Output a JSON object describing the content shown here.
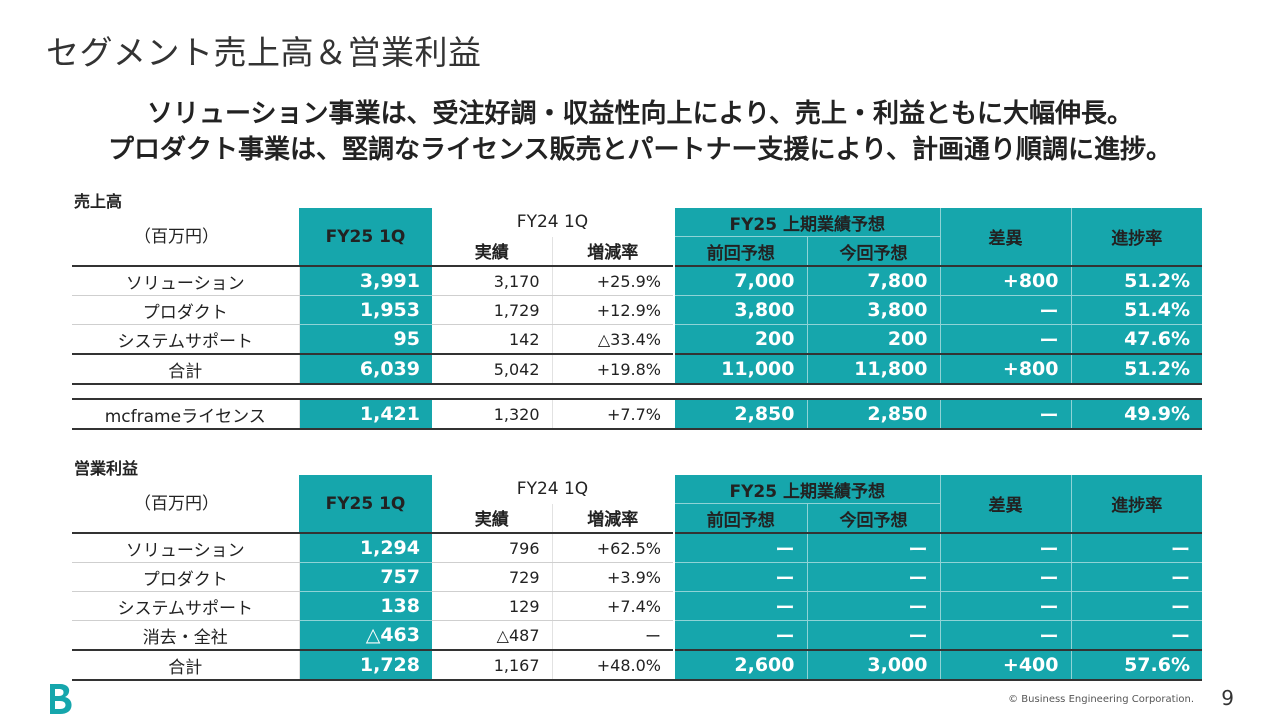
{
  "title": "セグメント売上高＆営業利益",
  "headline": {
    "line1": "ソリューション事業は、受注好調・収益性向上により、売上・利益ともに大幅伸長。",
    "line2": "プロダクト事業は、堅調なライセンス販売とパートナー支援により、計画通り順調に進捗。"
  },
  "headers": {
    "unit": "（百万円）",
    "fy25_1q": "FY25 1Q",
    "fy24_1q": "FY24 1Q",
    "actual": "実績",
    "change": "増減率",
    "forecast": "FY25 上期業績予想",
    "prev_forecast": "前回予想",
    "curr_forecast": "今回予想",
    "diff": "差異",
    "progress": "進捗率"
  },
  "sales": {
    "label": "売上高",
    "rows": [
      {
        "name": "ソリューション",
        "fy25": "3,991",
        "fy24": "3,170",
        "chg": "+25.9%",
        "prev": "7,000",
        "curr": "7,800",
        "diff": "+800",
        "prog": "51.2%"
      },
      {
        "name": "プロダクト",
        "fy25": "1,953",
        "fy24": "1,729",
        "chg": "+12.9%",
        "prev": "3,800",
        "curr": "3,800",
        "diff": "ー",
        "prog": "51.4%"
      },
      {
        "name": "システムサポート",
        "fy25": "95",
        "fy24": "142",
        "chg": "△33.4%",
        "prev": "200",
        "curr": "200",
        "diff": "ー",
        "prog": "47.6%"
      },
      {
        "name": "合計",
        "fy25": "6,039",
        "fy24": "5,042",
        "chg": "+19.8%",
        "prev": "11,000",
        "curr": "11,800",
        "diff": "+800",
        "prog": "51.2%"
      }
    ],
    "mcframe": {
      "name": "mcframeライセンス",
      "fy25": "1,421",
      "fy24": "1,320",
      "chg": "+7.7%",
      "prev": "2,850",
      "curr": "2,850",
      "diff": "ー",
      "prog": "49.9%"
    }
  },
  "op": {
    "label": "営業利益",
    "rows": [
      {
        "name": "ソリューション",
        "fy25": "1,294",
        "fy24": "796",
        "chg": "+62.5%",
        "prev": "ー",
        "curr": "ー",
        "diff": "ー",
        "prog": "ー"
      },
      {
        "name": "プロダクト",
        "fy25": "757",
        "fy24": "729",
        "chg": "+3.9%",
        "prev": "ー",
        "curr": "ー",
        "diff": "ー",
        "prog": "ー"
      },
      {
        "name": "システムサポート",
        "fy25": "138",
        "fy24": "129",
        "chg": "+7.4%",
        "prev": "ー",
        "curr": "ー",
        "diff": "ー",
        "prog": "ー"
      },
      {
        "name": "消去・全社",
        "fy25": "△463",
        "fy24": "△487",
        "chg": "ー",
        "prev": "ー",
        "curr": "ー",
        "diff": "ー",
        "prog": "ー"
      },
      {
        "name": "合計",
        "fy25": "1,728",
        "fy24": "1,167",
        "chg": "+48.0%",
        "prev": "2,600",
        "curr": "3,000",
        "diff": "+400",
        "prog": "57.6%"
      }
    ]
  },
  "footer": {
    "copyright": "© Business Engineering Corporation.",
    "page": "9"
  },
  "colors": {
    "accent": "#16a6ac"
  }
}
